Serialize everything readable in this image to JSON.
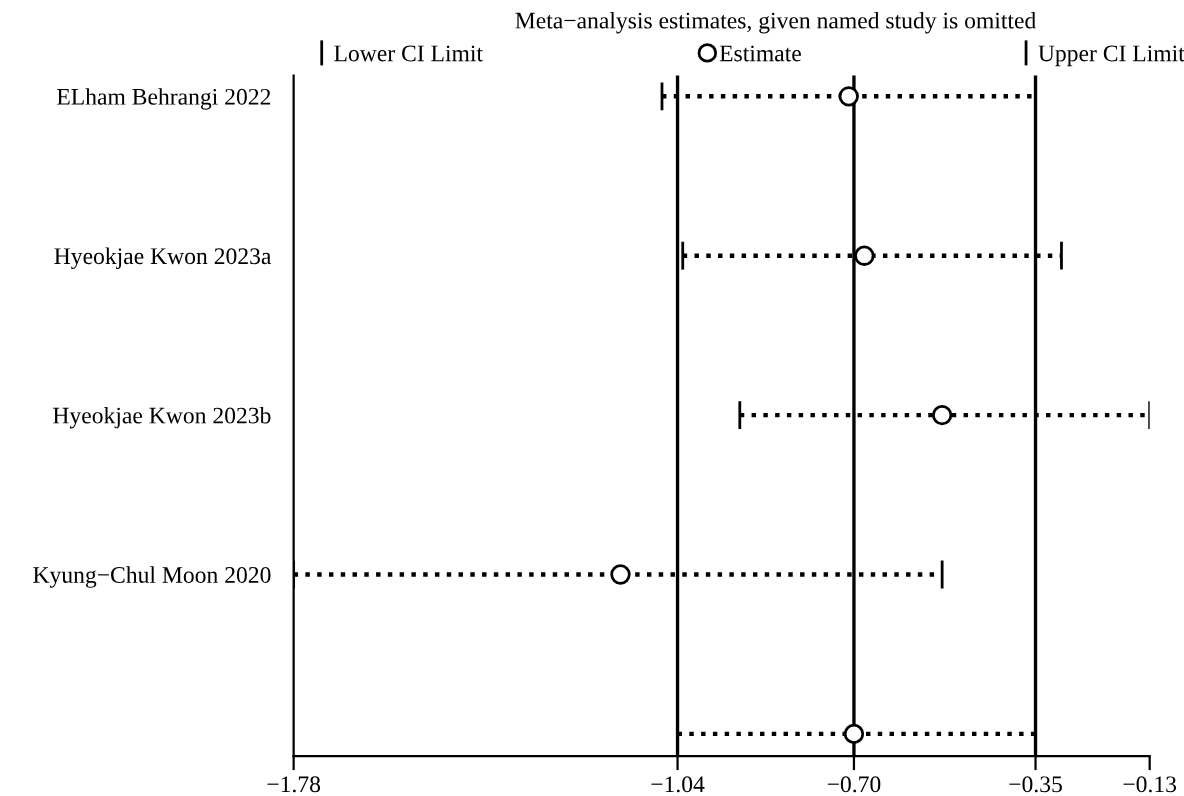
{
  "chart_data": {
    "type": "scatter",
    "title": "Meta−analysis estimates, given named study is omitted",
    "categories": [
      "ELham Behrangi 2022",
      "Hyeokjae Kwon 2023a",
      "Hyeokjae Kwon 2023b",
      "Kyung−Chul Moon 2020",
      null
    ],
    "orientation": "horizontal",
    "series": [
      {
        "name": "Estimate",
        "color": "#000000",
        "marker": "circle",
        "line_style": "dotted",
        "values": [
          -0.71,
          -0.68,
          -0.53,
          -1.15,
          -0.7
        ],
        "errors": [
          [
            -1.07,
            -0.35
          ],
          [
            -1.03,
            -0.3
          ],
          [
            -0.92,
            -0.13
          ],
          [
            -1.78,
            -0.53
          ],
          [
            -1.04,
            -0.35
          ]
        ]
      }
    ],
    "annotations": [
      "Lower CI Limit",
      "Upper CI Limit"
    ],
    "xlim": [
      -1.78,
      -0.13
    ],
    "xticks": [
      {
        "value": -1.78,
        "label": "−1.78"
      },
      {
        "value": -1.04,
        "label": "−1.04"
      },
      {
        "value": -0.7,
        "label": "−0.70"
      },
      {
        "value": -0.35,
        "label": "−0.35"
      },
      {
        "value": -0.13,
        "label": "−0.13"
      }
    ],
    "ref_lines": [
      {
        "axis": "x",
        "value": -1.04,
        "color": "#000000",
        "line_style": "solid"
      },
      {
        "axis": "x",
        "value": -0.7,
        "color": "#000000",
        "line_style": "solid"
      },
      {
        "axis": "x",
        "value": -0.35,
        "color": "#000000",
        "line_style": "solid"
      }
    ],
    "legend": "top",
    "grid": false
  }
}
